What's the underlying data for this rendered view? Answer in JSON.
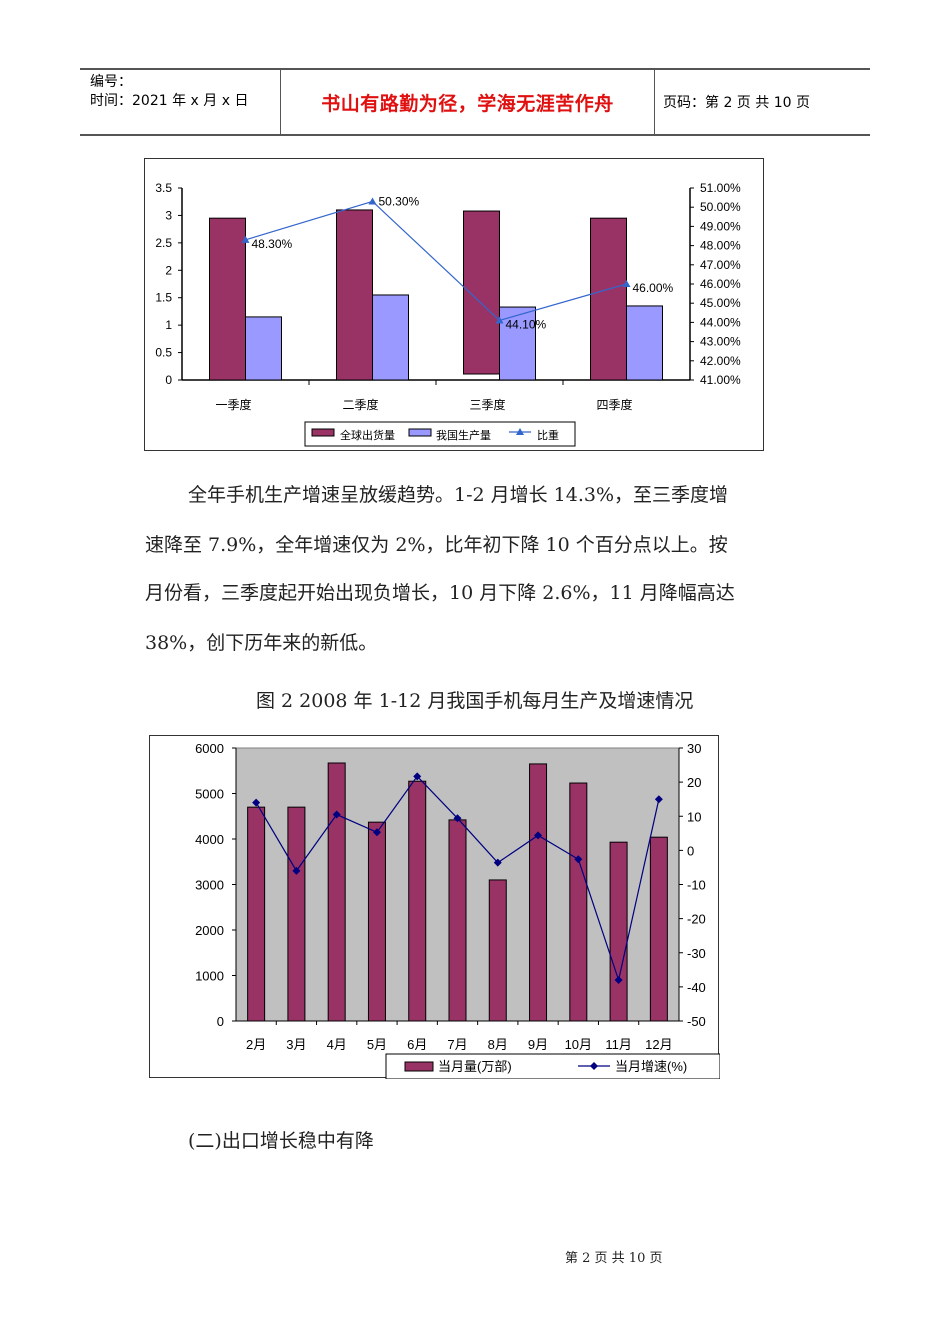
{
  "header": {
    "serial_label": "编号：",
    "date_label": "时间：2021 年 x 月 x 日",
    "motto": "书山有路勤为径，学海无涯苦作舟",
    "page_info": "页码：第 2 页  共 10 页"
  },
  "chart_data": [
    {
      "type": "bar",
      "title": "",
      "categories": [
        "一季度",
        "二季度",
        "三季度",
        "四季度"
      ],
      "series": [
        {
          "name": "全球出货量",
          "type": "bar",
          "axis": "left",
          "color": "#993366",
          "values": [
            2.95,
            3.1,
            3.08,
            2.95
          ]
        },
        {
          "name": "我国生产量",
          "type": "bar",
          "axis": "left",
          "color": "#9999ff",
          "values": [
            1.15,
            1.55,
            1.33,
            1.35
          ]
        },
        {
          "name": "比重",
          "type": "line",
          "axis": "right",
          "color": "#3366cc",
          "values": [
            48.3,
            50.3,
            44.1,
            46.0
          ],
          "labels": [
            "48.30%",
            "50.30%",
            "44.10%",
            "46.00%"
          ]
        }
      ],
      "y_left": {
        "ticks": [
          "0",
          "0.5",
          "1",
          "1.5",
          "2",
          "2.5",
          "3",
          "3.5"
        ],
        "ylim": [
          0,
          3.5
        ]
      },
      "y_right": {
        "ticks": [
          "41.00%",
          "42.00%",
          "43.00%",
          "44.00%",
          "45.00%",
          "46.00%",
          "47.00%",
          "48.00%",
          "49.00%",
          "50.00%",
          "51.00%"
        ],
        "ylim": [
          41,
          51
        ]
      },
      "xlabel": "",
      "ylabel": "",
      "grid": false,
      "legend_position": "bottom"
    },
    {
      "type": "bar",
      "title": "图2 2008年1-12月我国手机每月生产及增速情况",
      "categories": [
        "2月",
        "3月",
        "4月",
        "5月",
        "6月",
        "7月",
        "8月",
        "9月",
        "10月",
        "11月",
        "12月"
      ],
      "series": [
        {
          "name": "当月量(万部)",
          "type": "bar",
          "axis": "left",
          "color": "#993366",
          "values": [
            4700,
            4700,
            5670,
            4370,
            5270,
            4420,
            3100,
            5650,
            5230,
            3930,
            4040
          ]
        },
        {
          "name": "当月增速(%)",
          "type": "line",
          "axis": "right",
          "color": "#000080",
          "values": [
            14,
            -6,
            10.5,
            5.3,
            21.7,
            9.4,
            -3.6,
            4.4,
            -2.6,
            -38,
            15
          ]
        }
      ],
      "y_left": {
        "ticks": [
          "0",
          "1000",
          "2000",
          "3000",
          "4000",
          "5000",
          "6000"
        ],
        "ylim": [
          0,
          6000
        ]
      },
      "y_right": {
        "ticks": [
          "-50",
          "-40",
          "-30",
          "-20",
          "-10",
          "0",
          "10",
          "20",
          "30"
        ],
        "ylim": [
          -50,
          30
        ]
      },
      "xlabel": "",
      "ylabel": "",
      "grid": false,
      "plot_background": "#c0c0c0",
      "legend_position": "bottom-right"
    }
  ],
  "body": {
    "paragraph_lines": [
      "全年手机生产增速呈放缓趋势。1-2 月增长 14.3%，至三季度增",
      "速降至 7.9%，全年增速仅为 2%，比年初下降 10 个百分点以上。按",
      "月份看，三季度起开始出现负增长，10 月下降 2.6%，11 月降幅高达",
      "38%，创下历年来的新低。"
    ],
    "figure2_caption": "图 2  2008 年 1-12 月我国手机每月生产及增速情况",
    "section_heading": "(二)出口增长稳中有降"
  },
  "footer": {
    "page_number": "第 2 页 共 10 页"
  }
}
